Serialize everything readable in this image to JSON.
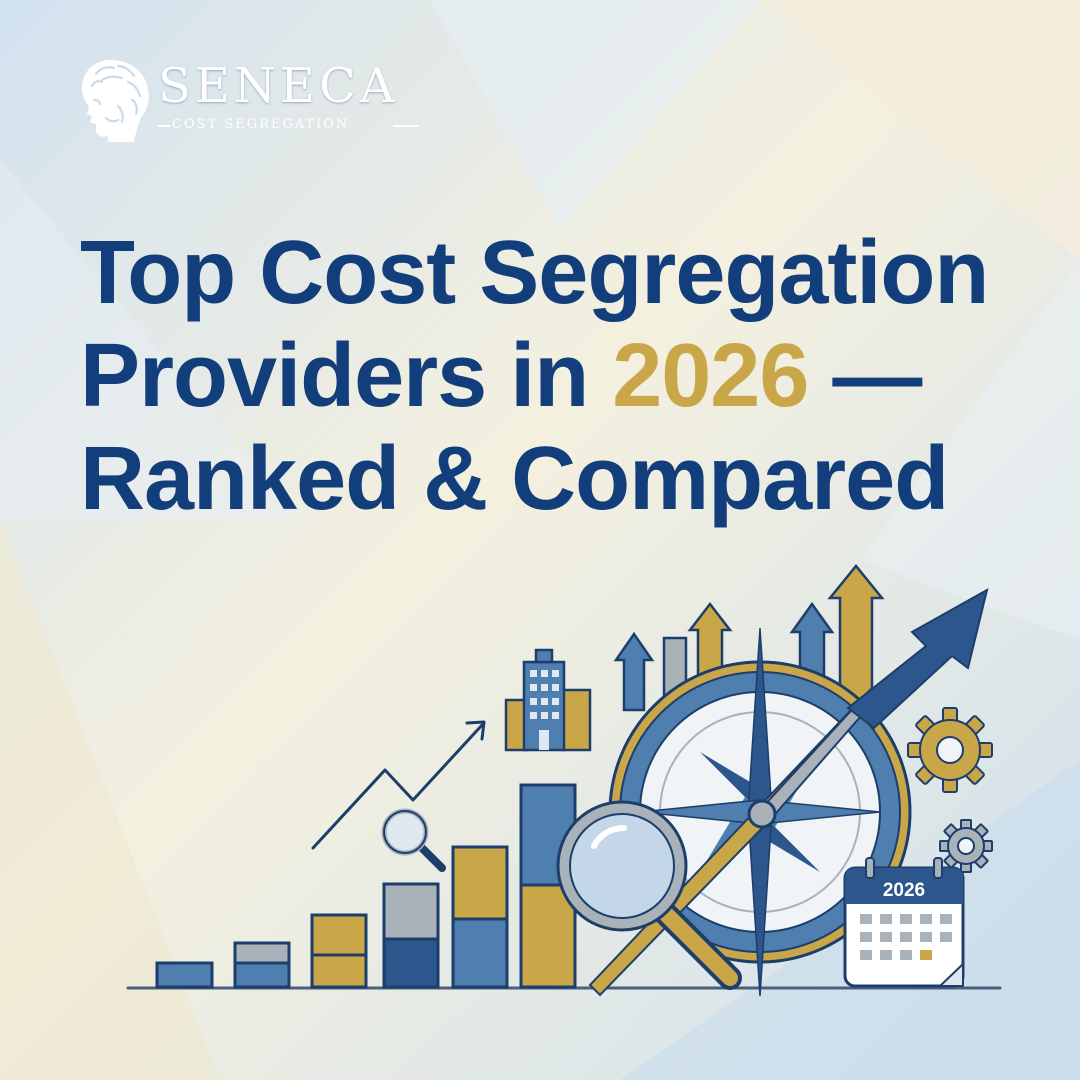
{
  "brand": {
    "name": "SENECA",
    "tagline": "COST SEGREGATION",
    "logo_icon": "philosopher-bust-icon"
  },
  "headline": {
    "line1": "Top Cost Segregation",
    "line2_pre": "Providers in ",
    "line2_accent": "2026",
    "line2_post": " —",
    "line3": "Ranked & Compared"
  },
  "illustration": {
    "calendar_year": "2026",
    "icons": [
      "bar-chart-icon",
      "trend-line-icon",
      "building-icon",
      "magnifier-icon",
      "compass-icon",
      "growth-arrow-icon",
      "gear-icon",
      "calendar-icon"
    ]
  },
  "colors": {
    "navy": "#123f7c",
    "gold": "#c9a648",
    "steel_blue": "#4f7fae",
    "grey": "#a8b0b8",
    "background_light": "#f4efdc",
    "background_blue": "#c9dff0"
  }
}
